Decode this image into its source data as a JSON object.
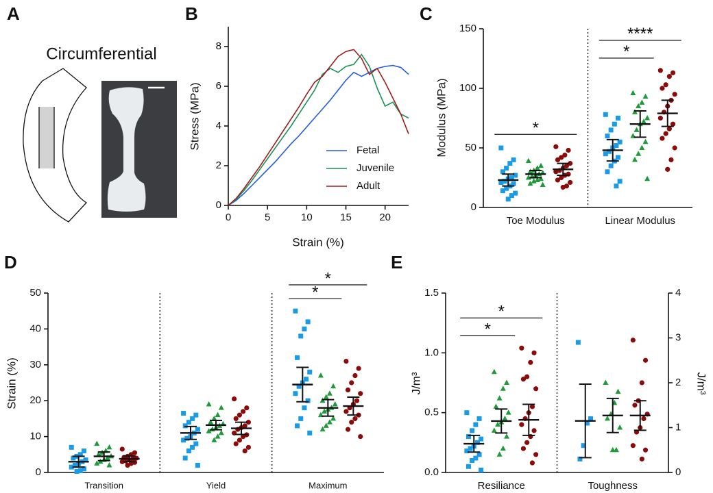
{
  "panel_a": {
    "panel_label": "A",
    "title": "Circumferential"
  },
  "chart_data": [
    {
      "type": "line",
      "panel_label": "B",
      "xlabel": "Strain (%)",
      "ylabel": "Stress (MPa)",
      "x": [
        0,
        1,
        2,
        3,
        4,
        5,
        6,
        7,
        8,
        9,
        10,
        11,
        12,
        13,
        14,
        15,
        16,
        17,
        18,
        19,
        20,
        21,
        22,
        23
      ],
      "xlim": [
        0,
        23
      ],
      "xticks": [
        0,
        5,
        10,
        15,
        20
      ],
      "ylim": [
        0,
        9
      ],
      "yticks": [
        0,
        2,
        4,
        6,
        8
      ],
      "legend": "lower right",
      "series": [
        {
          "name": "Fetal",
          "color": "#1f5ce0",
          "values": [
            0,
            0.25,
            0.6,
            1.0,
            1.4,
            1.8,
            2.2,
            2.65,
            3.1,
            3.5,
            3.95,
            4.4,
            4.85,
            5.3,
            5.8,
            6.3,
            6.7,
            6.5,
            6.7,
            6.9,
            7.0,
            7.05,
            6.95,
            6.6
          ]
        },
        {
          "name": "Juvenile",
          "color": "#1a9155",
          "values": [
            0,
            0.3,
            0.75,
            1.25,
            1.8,
            2.35,
            2.9,
            3.45,
            4.0,
            4.6,
            5.2,
            5.8,
            6.6,
            6.9,
            6.7,
            7.0,
            7.1,
            7.6,
            7.0,
            5.9,
            5.0,
            5.2,
            4.6,
            4.4
          ]
        },
        {
          "name": "Adult",
          "color": "#a01c1c",
          "values": [
            0,
            0.35,
            0.85,
            1.4,
            1.95,
            2.55,
            3.15,
            3.75,
            4.35,
            4.95,
            5.6,
            6.2,
            6.5,
            7.0,
            7.5,
            7.75,
            7.85,
            7.4,
            6.6,
            6.9,
            6.2,
            5.4,
            4.6,
            3.6
          ]
        }
      ]
    },
    {
      "type": "dot",
      "panel_label": "C",
      "ylabel": "Modulus (MPa)",
      "categories": [
        "Toe Modulus",
        "Linear Modulus"
      ],
      "ylim": [
        0,
        150
      ],
      "yticks": [
        0,
        50,
        100,
        150
      ],
      "series": [
        {
          "color": "#1a9be8",
          "marker": "square",
          "points": [
            [
              50,
              40,
              37,
              33,
              30,
              27,
              25,
              24,
              22,
              21,
              20,
              18,
              16,
              14,
              12,
              10,
              7
            ],
            [
              78,
              75,
              70,
              65,
              60,
              55,
              52,
              50,
              47,
              45,
              42,
              39,
              35,
              30,
              22,
              18
            ]
          ],
          "means": [
            23,
            48
          ],
          "errors": [
            5,
            9
          ]
        },
        {
          "color": "#1f9a3a",
          "marker": "triangle",
          "points": [
            [
              39,
              35,
              33,
              31,
              30,
              29,
              28,
              27,
              26,
              25,
              24,
              23,
              22,
              20,
              19
            ],
            [
              96,
              93,
              88,
              85,
              80,
              75,
              72,
              70,
              65,
              60,
              55,
              50,
              45,
              40,
              24
            ]
          ],
          "means": [
            28,
            70
          ],
          "errors": [
            3,
            11
          ]
        },
        {
          "color": "#8b0a0a",
          "marker": "circle",
          "points": [
            [
              51,
              48,
              44,
              42,
              40,
              37,
              35,
              33,
              31,
              30,
              28,
              27,
              25,
              23,
              21,
              18,
              17
            ],
            [
              115,
              113,
              110,
              103,
              100,
              95,
              90,
              85,
              80,
              75,
              70,
              66,
              62,
              58,
              50,
              40,
              32
            ]
          ],
          "means": [
            32,
            79
          ],
          "errors": [
            5,
            11
          ]
        }
      ],
      "brackets": [
        {
          "label": "*",
          "category": 0,
          "series": [
            0,
            2
          ]
        },
        {
          "label": "*",
          "category": 1,
          "series": [
            0,
            1
          ]
        },
        {
          "label": "****",
          "category": 1,
          "series": [
            0,
            2
          ]
        }
      ]
    },
    {
      "type": "dot",
      "panel_label": "D",
      "ylabel": "Strain (%)",
      "categories": [
        "Transition",
        "Yield",
        "Maximum"
      ],
      "ylim": [
        0,
        50
      ],
      "yticks": [
        0,
        10,
        20,
        30,
        40,
        50
      ],
      "series": [
        {
          "color": "#1a9be8",
          "marker": "square",
          "points": [
            [
              7,
              6,
              5,
              4.5,
              4,
              3.5,
              3,
              2.5,
              2,
              1.5,
              1,
              0.5,
              0.3
            ],
            [
              16.5,
              16,
              15,
              14,
              13,
              12,
              11,
              10,
              9.5,
              9,
              8,
              7,
              6,
              4,
              2
            ],
            [
              45,
              42,
              40,
              38,
              32,
              28,
              26,
              25,
              24,
              22,
              20,
              18,
              15,
              13,
              11
            ]
          ],
          "means": [
            3,
            11,
            24.5
          ],
          "errors": [
            1.5,
            1.8,
            4.8
          ]
        },
        {
          "color": "#1f9a3a",
          "marker": "triangle",
          "points": [
            [
              8,
              7,
              6,
              5.5,
              5,
              4.5,
              4,
              3.5,
              3,
              2.5,
              2
            ],
            [
              19,
              18,
              16,
              15,
              14,
              13.5,
              13,
              12.5,
              12,
              11.5,
              11,
              10,
              9
            ],
            [
              27,
              24,
              22,
              21,
              20,
              19,
              18,
              17.5,
              17,
              16,
              15,
              14,
              13,
              12
            ]
          ],
          "means": [
            4.5,
            13.2,
            18
          ],
          "errors": [
            1.2,
            1.3,
            2.3
          ]
        },
        {
          "color": "#8b0a0a",
          "marker": "circle",
          "points": [
            [
              6.5,
              5.5,
              5,
              4.5,
              4.2,
              4,
              3.8,
              3.5,
              3.2,
              3,
              2.8,
              2.5,
              2
            ],
            [
              20.5,
              18,
              17,
              16,
              15,
              14,
              13,
              12.5,
              12,
              11,
              10.5,
              10,
              9,
              8,
              7,
              6
            ],
            [
              31,
              29,
              27,
              25,
              23,
              22,
              20,
              19,
              18,
              17,
              16,
              15,
              14,
              12,
              10
            ]
          ],
          "means": [
            3.8,
            12.3,
            18.5
          ],
          "errors": [
            0.8,
            1.7,
            2.5
          ]
        }
      ],
      "brackets": [
        {
          "label": "*",
          "category": 2,
          "series": [
            0,
            1
          ]
        },
        {
          "label": "*",
          "category": 2,
          "series": [
            0,
            2
          ]
        }
      ]
    },
    {
      "type": "dot",
      "panel_label": "E",
      "ylabel": "J/m³",
      "y2label": "J/m³",
      "categories": [
        "Resiliance",
        "Toughness"
      ],
      "category_axis": [
        "y",
        "y2"
      ],
      "ylim": [
        0,
        1.5
      ],
      "yticks": [
        {
          "value": 0,
          "label": "0.0"
        },
        0.5,
        {
          "value": 1,
          "label": "1.0"
        },
        1.5
      ],
      "y2lim": [
        0,
        4
      ],
      "y2ticks": [
        0,
        1,
        2,
        3,
        4
      ],
      "series": [
        {
          "color": "#1a9be8",
          "marker": "square",
          "points": [
            [
              0.5,
              0.45,
              0.4,
              0.35,
              0.3,
              0.28,
              0.25,
              0.22,
              0.2,
              0.18,
              0.15,
              0.12,
              0.1,
              0.05,
              0.02
            ],
            [
              2.9,
              1.2,
              1.1,
              0.6,
              0.3
            ]
          ],
          "means": [
            0.24,
            1.15
          ],
          "errors": [
            0.07,
            0.82
          ]
        },
        {
          "color": "#1f9a3a",
          "marker": "triangle",
          "points": [
            [
              0.84,
              0.75,
              0.7,
              0.62,
              0.55,
              0.5,
              0.45,
              0.42,
              0.4,
              0.35,
              0.3,
              0.2,
              0.15
            ],
            [
              2.0,
              1.8,
              1.55,
              1.3,
              1.2,
              1.0,
              0.5,
              0.5
            ]
          ],
          "means": [
            0.43,
            1.27
          ],
          "errors": [
            0.1,
            0.38
          ]
        },
        {
          "color": "#8b0a0a",
          "marker": "circle",
          "points": [
            [
              1.04,
              1.0,
              0.92,
              0.8,
              0.78,
              0.7,
              0.55,
              0.5,
              0.45,
              0.4,
              0.35,
              0.3,
              0.25,
              0.2,
              0.15,
              0.08
            ],
            [
              2.95,
              2.5,
              2.0,
              1.6,
              1.5,
              1.3,
              1.2,
              1.0,
              0.9,
              0.6,
              0.5,
              0.3
            ]
          ],
          "means": [
            0.44,
            1.27
          ],
          "errors": [
            0.13,
            0.33
          ]
        }
      ],
      "brackets": [
        {
          "label": "*",
          "category": 0,
          "series": [
            0,
            1
          ]
        },
        {
          "label": "*",
          "category": 0,
          "series": [
            0,
            2
          ]
        }
      ]
    }
  ]
}
